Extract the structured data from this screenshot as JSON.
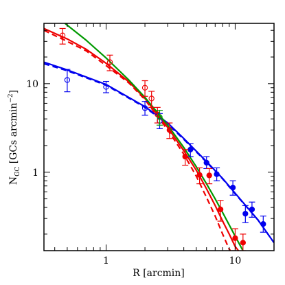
{
  "chart_data": {
    "type": "scatter",
    "xlabel": "R [arcmin]",
    "ylabel": {
      "main": "N",
      "sub": "GC",
      "rest": " [GCs arcmin",
      "sup": "−2",
      "end": "]"
    },
    "xscale": "log",
    "yscale": "log",
    "xlim": [
      0.33,
      20
    ],
    "ylim": [
      0.13,
      48
    ],
    "xticks": [
      {
        "value": 1,
        "label": "1"
      },
      {
        "value": 10,
        "label": "10"
      }
    ],
    "yticks": [
      {
        "value": 1,
        "label": "1"
      },
      {
        "value": 10,
        "label": "10"
      }
    ],
    "colors": {
      "blue": "#0000ee",
      "red": "#ee0000",
      "green": "#009900",
      "axis": "#000000"
    },
    "points": [
      {
        "series": "blue-open",
        "color": "#0000ee",
        "filled": false,
        "x": 0.5,
        "y": 11.0,
        "err": [
          8.1,
          14.5
        ]
      },
      {
        "series": "blue-open",
        "color": "#0000ee",
        "filled": false,
        "x": 1.0,
        "y": 9.2,
        "err": [
          7.9,
          10.6
        ]
      },
      {
        "series": "blue-open",
        "color": "#0000ee",
        "filled": false,
        "x": 2.0,
        "y": 5.3,
        "err": [
          4.4,
          6.3
        ]
      },
      {
        "series": "blue-open",
        "color": "#0000ee",
        "filled": false,
        "x": 2.6,
        "y": 3.8,
        "err": [
          3.1,
          4.6
        ]
      },
      {
        "series": "blue-filled",
        "color": "#0000ee",
        "filled": true,
        "x": 4.5,
        "y": 1.8,
        "err": [
          1.5,
          2.1
        ]
      },
      {
        "series": "blue-filled",
        "color": "#0000ee",
        "filled": true,
        "x": 6.0,
        "y": 1.28,
        "err": [
          1.1,
          1.5
        ]
      },
      {
        "series": "blue-filled",
        "color": "#0000ee",
        "filled": true,
        "x": 7.2,
        "y": 0.95,
        "err": [
          0.8,
          1.12
        ]
      },
      {
        "series": "blue-filled",
        "color": "#0000ee",
        "filled": true,
        "x": 9.6,
        "y": 0.67,
        "err": [
          0.55,
          0.8
        ]
      },
      {
        "series": "blue-filled",
        "color": "#0000ee",
        "filled": true,
        "x": 12.0,
        "y": 0.34,
        "err": [
          0.27,
          0.42
        ]
      },
      {
        "series": "blue-filled",
        "color": "#0000ee",
        "filled": true,
        "x": 13.5,
        "y": 0.38,
        "err": [
          0.31,
          0.46
        ]
      },
      {
        "series": "blue-filled",
        "color": "#0000ee",
        "filled": true,
        "x": 16.5,
        "y": 0.26,
        "err": [
          0.21,
          0.32
        ]
      },
      {
        "series": "red-open",
        "color": "#ee0000",
        "filled": false,
        "x": 0.46,
        "y": 35.0,
        "err": [
          28.0,
          42.0
        ]
      },
      {
        "series": "red-open",
        "color": "#ee0000",
        "filled": false,
        "x": 1.07,
        "y": 17.5,
        "err": [
          14.0,
          21.0
        ]
      },
      {
        "series": "red-open",
        "color": "#ee0000",
        "filled": false,
        "x": 2.0,
        "y": 9.0,
        "err": [
          7.2,
          10.8
        ]
      },
      {
        "series": "red-open",
        "color": "#ee0000",
        "filled": false,
        "x": 2.25,
        "y": 6.8,
        "err": [
          5.4,
          8.2
        ]
      },
      {
        "series": "red-open",
        "color": "#ee0000",
        "filled": false,
        "x": 2.5,
        "y": 4.5,
        "err": [
          3.6,
          5.4
        ]
      },
      {
        "series": "red-open",
        "color": "#ee0000",
        "filled": false,
        "x": 3.1,
        "y": 3.0,
        "err": [
          2.4,
          3.6
        ]
      },
      {
        "series": "red-filled",
        "color": "#ee0000",
        "filled": true,
        "x": 4.1,
        "y": 1.5,
        "err": [
          1.2,
          1.8
        ]
      },
      {
        "series": "red-filled",
        "color": "#ee0000",
        "filled": true,
        "x": 5.3,
        "y": 0.93,
        "err": [
          0.74,
          1.12
        ]
      },
      {
        "series": "red-filled",
        "color": "#ee0000",
        "filled": true,
        "x": 6.3,
        "y": 0.92,
        "err": [
          0.74,
          1.1
        ]
      },
      {
        "series": "red-filled",
        "color": "#ee0000",
        "filled": true,
        "x": 7.7,
        "y": 0.38,
        "err": [
          0.28,
          0.48
        ]
      },
      {
        "series": "red-filled",
        "color": "#ee0000",
        "filled": true,
        "x": 10.0,
        "y": 0.18,
        "err": [
          0.13,
          0.23
        ]
      },
      {
        "series": "red-filled",
        "color": "#ee0000",
        "filled": true,
        "x": 11.5,
        "y": 0.16,
        "err": [
          0.13,
          0.2
        ]
      },
      {
        "series": "green-open",
        "color": "#009900",
        "filled": false,
        "x": 2.6,
        "y": 4.2,
        "err": [
          3.4,
          5.0
        ]
      }
    ],
    "curves": [
      {
        "name": "blue-solid",
        "color": "#0000ee",
        "dash": false,
        "points": [
          [
            0.33,
            17.5
          ],
          [
            0.5,
            14.3
          ],
          [
            1.0,
            9.8
          ],
          [
            2.0,
            5.5
          ],
          [
            3.0,
            3.6
          ],
          [
            4.0,
            2.4
          ],
          [
            6.0,
            1.32
          ],
          [
            8.0,
            0.85
          ],
          [
            10.0,
            0.58
          ],
          [
            15.0,
            0.29
          ],
          [
            20.0,
            0.16
          ]
        ]
      },
      {
        "name": "blue-dashed",
        "color": "#0000ee",
        "dash": true,
        "points": [
          [
            0.33,
            16.8
          ],
          [
            0.5,
            14.0
          ],
          [
            1.0,
            9.6
          ],
          [
            2.0,
            5.4
          ],
          [
            3.0,
            3.5
          ],
          [
            4.0,
            2.35
          ],
          [
            6.0,
            1.3
          ],
          [
            8.0,
            0.84
          ],
          [
            10.0,
            0.57
          ],
          [
            15.0,
            0.29
          ],
          [
            20.0,
            0.16
          ]
        ]
      },
      {
        "name": "red-solid",
        "color": "#ee0000",
        "dash": false,
        "points": [
          [
            0.33,
            42.0
          ],
          [
            0.5,
            32.0
          ],
          [
            0.7,
            24.5
          ],
          [
            1.0,
            17.0
          ],
          [
            1.5,
            10.5
          ],
          [
            2.0,
            6.8
          ],
          [
            3.0,
            3.2
          ],
          [
            4.0,
            1.75
          ],
          [
            5.0,
            1.05
          ],
          [
            6.0,
            0.65
          ],
          [
            7.0,
            0.42
          ],
          [
            8.0,
            0.28
          ],
          [
            9.0,
            0.2
          ],
          [
            10.0,
            0.145
          ],
          [
            10.6,
            0.13
          ]
        ]
      },
      {
        "name": "red-dashed",
        "color": "#ee0000",
        "dash": true,
        "points": [
          [
            0.33,
            40.0
          ],
          [
            0.5,
            30.0
          ],
          [
            0.7,
            23.5
          ],
          [
            1.0,
            16.0
          ],
          [
            1.5,
            10.2
          ],
          [
            2.0,
            6.6
          ],
          [
            3.0,
            3.0
          ],
          [
            4.0,
            1.6
          ],
          [
            5.0,
            0.9
          ],
          [
            6.0,
            0.52
          ],
          [
            7.0,
            0.32
          ],
          [
            8.0,
            0.2
          ],
          [
            9.0,
            0.135
          ],
          [
            9.2,
            0.13
          ]
        ]
      },
      {
        "name": "green-solid",
        "color": "#009900",
        "dash": false,
        "points": [
          [
            0.48,
            48.0
          ],
          [
            0.7,
            31.0
          ],
          [
            1.0,
            19.5
          ],
          [
            1.5,
            11.0
          ],
          [
            2.0,
            7.0
          ],
          [
            3.0,
            3.4
          ],
          [
            4.0,
            1.9
          ],
          [
            5.0,
            1.15
          ],
          [
            6.0,
            0.74
          ],
          [
            7.0,
            0.5
          ],
          [
            8.0,
            0.35
          ],
          [
            10.0,
            0.19
          ],
          [
            11.5,
            0.13
          ]
        ]
      }
    ]
  }
}
